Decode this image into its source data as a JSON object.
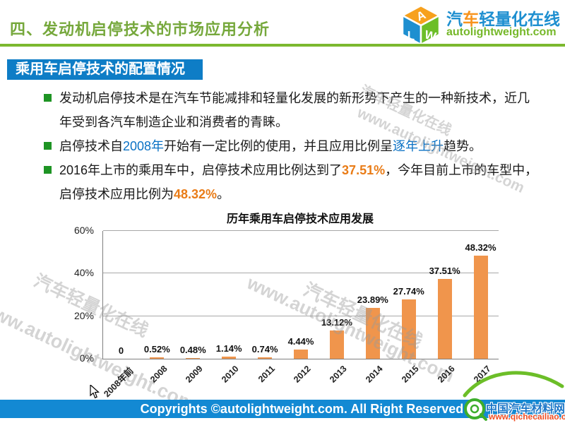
{
  "header": {
    "title": "四、发动机启停技术的市场应用分析",
    "logo": {
      "letter_top": "A",
      "letter_left": "L",
      "letter_right": "W",
      "brand_char_1": "汽",
      "brand_char_2": "车",
      "brand_rest": "轻量化在线",
      "brand_en": "autolightweight.com"
    }
  },
  "section_badge": "乘用车启停技术的配置情况",
  "bullets": {
    "b1": {
      "text": "发动机启停技术是在汽车节能减排和轻量化发展的新形势下产生的一种新技术，近几年受到各汽车制造企业和消费者的青睐。"
    },
    "b2": {
      "s1": "启停技术自",
      "s2": "2008年",
      "s3": "开始有一定比例的使用，并且应用比例呈",
      "s4": "逐年上升",
      "s5": "趋势。"
    },
    "b3": {
      "s1": "2016年上市的乘用车中，启停技术应用比例达到了",
      "s2": "37.51%",
      "s3": "，今年目前上市的车型中，启停技术应用比例为",
      "s4": "48.32%",
      "s5": "。"
    }
  },
  "chart_data": {
    "type": "bar",
    "title": "历年乘用车启停技术应用发展",
    "categories": [
      "2008年前",
      "2008",
      "2009",
      "2010",
      "2011",
      "2012",
      "2013",
      "2014",
      "2015",
      "2016",
      "2017"
    ],
    "values": [
      0,
      0.52,
      0.48,
      1.14,
      0.74,
      4.44,
      13.12,
      23.89,
      27.74,
      37.51,
      48.32
    ],
    "value_labels": [
      "0",
      "0.52%",
      "0.48%",
      "1.14%",
      "0.74%",
      "4.44%",
      "13.12%",
      "23.89%",
      "27.74%",
      "37.51%",
      "48.32%"
    ],
    "xlabel": "",
    "ylabel": "",
    "ylim": [
      0,
      60
    ],
    "yticks": [
      0,
      20,
      40,
      60
    ],
    "ytick_labels": [
      "0%",
      "20%",
      "40%",
      "60%"
    ],
    "grid": true,
    "legend": false,
    "bar_color": "#F0954C"
  },
  "watermarks": {
    "url": "www.autolightweight.com",
    "brand": "汽车轻量化在线"
  },
  "footer": {
    "copyright": "Copyrights ©autolightweight.com. All Right Reserved"
  },
  "site_badge": {
    "name": "中国汽车材料网",
    "url": "www.qichecailiao.com"
  },
  "colors": {
    "title_green": "#76A83C",
    "rule_green": "#7CB82F",
    "badge_blue": "#0E7DC6",
    "link_blue": "#0B72C5",
    "highlight_orange": "#E97C17",
    "bar_orange": "#F0954C",
    "footer_blue": "#1389D3"
  }
}
